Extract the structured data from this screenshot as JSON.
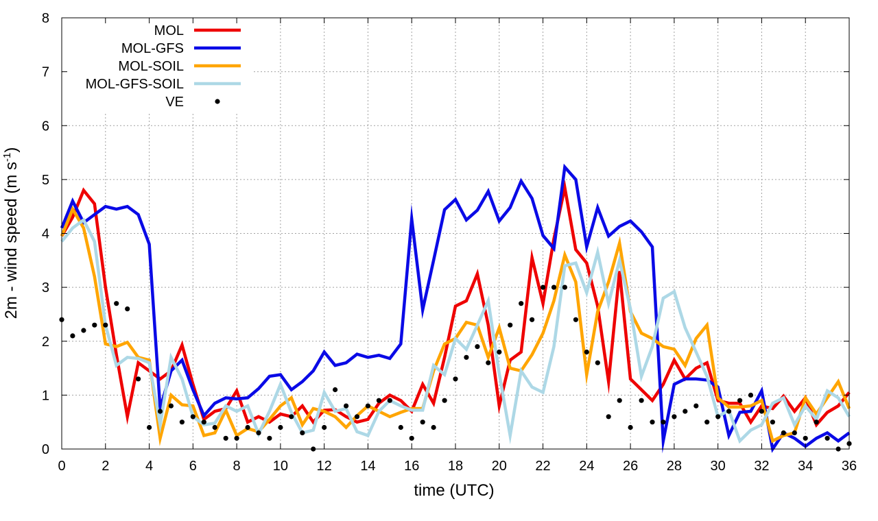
{
  "chart_data": {
    "type": "line",
    "title": "",
    "xlabel": "time (UTC)",
    "ylabel_main": "2m - wind speed  (m s",
    "ylabel_sup": "-1",
    "ylabel_tail": ")",
    "xlim": [
      0,
      36
    ],
    "ylim": [
      0,
      8
    ],
    "xticks": [
      0,
      2,
      4,
      6,
      8,
      10,
      12,
      14,
      16,
      18,
      20,
      22,
      24,
      26,
      28,
      30,
      32,
      34,
      36
    ],
    "yticks": [
      0,
      1,
      2,
      3,
      4,
      5,
      6,
      7,
      8
    ],
    "grid": true,
    "legend_position": "top-left",
    "x": [
      0,
      0.5,
      1,
      1.5,
      2,
      2.5,
      3,
      3.5,
      4,
      4.5,
      5,
      5.5,
      6,
      6.5,
      7,
      7.5,
      8,
      8.5,
      9,
      9.5,
      10,
      10.5,
      11,
      11.5,
      12,
      12.5,
      13,
      13.5,
      14,
      14.5,
      15,
      15.5,
      16,
      16.5,
      17,
      17.5,
      18,
      18.5,
      19,
      19.5,
      20,
      20.5,
      21,
      21.5,
      22,
      22.5,
      23,
      23.5,
      24,
      24.5,
      25,
      25.5,
      26,
      26.5,
      27,
      27.5,
      28,
      28.5,
      29,
      29.5,
      30,
      30.5,
      31,
      31.5,
      32,
      32.5,
      33,
      33.5,
      34,
      34.5,
      35,
      35.5,
      36
    ],
    "series": [
      {
        "name": "MOL",
        "color": "#ee0000",
        "style": "line",
        "values": [
          3.95,
          4.3,
          4.8,
          4.55,
          3.0,
          1.75,
          0.6,
          1.6,
          1.45,
          1.3,
          1.45,
          1.93,
          1.2,
          0.55,
          0.7,
          0.75,
          1.08,
          0.5,
          0.6,
          0.5,
          0.65,
          0.6,
          0.8,
          0.5,
          0.72,
          0.73,
          0.6,
          0.5,
          0.55,
          0.85,
          1.0,
          0.9,
          0.7,
          1.2,
          0.85,
          1.7,
          2.65,
          2.75,
          3.25,
          2.3,
          0.8,
          1.65,
          1.8,
          3.55,
          2.7,
          3.9,
          4.85,
          3.7,
          3.45,
          2.65,
          1.25,
          3.3,
          1.3,
          1.1,
          0.9,
          1.2,
          1.65,
          1.3,
          1.5,
          1.6,
          0.9,
          0.85,
          0.85,
          0.5,
          0.8,
          0.75,
          0.98,
          0.7,
          0.95,
          0.45,
          0.68,
          0.8,
          1.05
        ]
      },
      {
        "name": "MOL-GFS",
        "color": "#0a0ae6",
        "style": "line",
        "values": [
          4.1,
          4.6,
          4.2,
          4.35,
          4.5,
          4.45,
          4.5,
          4.35,
          3.8,
          0.75,
          1.45,
          1.65,
          1.1,
          0.62,
          0.85,
          0.95,
          0.93,
          0.95,
          1.12,
          1.35,
          1.38,
          1.1,
          1.25,
          1.45,
          1.8,
          1.55,
          1.6,
          1.76,
          1.7,
          1.74,
          1.68,
          1.95,
          4.27,
          2.58,
          3.5,
          4.44,
          4.63,
          4.25,
          4.43,
          4.78,
          4.23,
          4.48,
          4.97,
          4.65,
          3.96,
          3.72,
          5.23,
          5.0,
          3.75,
          4.48,
          3.95,
          4.13,
          4.23,
          4.03,
          3.75,
          0.15,
          1.2,
          1.3,
          1.3,
          1.28,
          1.15,
          0.25,
          0.68,
          0.7,
          1.08,
          0.0,
          0.3,
          0.2,
          0.05,
          0.2,
          0.3,
          0.15,
          0.3
        ]
      },
      {
        "name": "MOL-SOIL",
        "color": "#ffa500",
        "style": "line",
        "values": [
          3.95,
          4.45,
          4.1,
          3.2,
          1.95,
          1.9,
          1.98,
          1.7,
          1.65,
          0.2,
          1.0,
          0.82,
          0.8,
          0.25,
          0.3,
          0.72,
          0.25,
          0.38,
          0.32,
          0.55,
          0.8,
          0.95,
          0.45,
          0.75,
          0.7,
          0.6,
          0.4,
          0.62,
          0.8,
          0.7,
          0.6,
          0.68,
          0.75,
          0.75,
          1.45,
          1.95,
          2.05,
          2.35,
          2.3,
          1.7,
          2.25,
          1.5,
          1.45,
          1.75,
          2.15,
          2.75,
          3.6,
          3.1,
          1.38,
          2.55,
          3.1,
          3.82,
          2.55,
          2.15,
          2.05,
          1.9,
          1.85,
          1.55,
          2.05,
          2.3,
          0.95,
          0.78,
          0.78,
          0.8,
          0.9,
          0.15,
          0.25,
          0.3,
          0.95,
          0.65,
          0.95,
          1.25,
          0.75
        ]
      },
      {
        "name": "MOL-GFS-SOIL",
        "color": "#add8e6",
        "style": "line",
        "values": [
          3.85,
          4.1,
          4.25,
          3.85,
          2.3,
          1.55,
          1.7,
          1.68,
          1.6,
          0.45,
          1.7,
          1.3,
          0.6,
          0.45,
          0.48,
          0.8,
          0.7,
          0.8,
          0.28,
          0.7,
          1.2,
          0.68,
          0.3,
          0.35,
          1.05,
          0.7,
          0.75,
          0.32,
          0.25,
          0.7,
          0.9,
          0.8,
          0.72,
          0.72,
          1.55,
          1.38,
          2.05,
          1.85,
          2.3,
          2.75,
          1.4,
          0.25,
          1.45,
          1.15,
          1.05,
          1.9,
          3.4,
          3.45,
          2.9,
          3.65,
          2.7,
          3.5,
          2.6,
          1.35,
          1.9,
          2.8,
          2.92,
          2.25,
          1.8,
          1.35,
          0.6,
          0.72,
          0.15,
          0.35,
          0.45,
          0.85,
          0.95,
          0.45,
          0.8,
          0.55,
          1.08,
          0.95,
          0.6
        ]
      },
      {
        "name": "VE",
        "color": "#000000",
        "style": "points",
        "values": [
          2.4,
          2.1,
          2.2,
          2.3,
          2.3,
          2.7,
          2.6,
          1.3,
          0.4,
          0.7,
          0.8,
          0.5,
          0.6,
          0.5,
          0.4,
          0.2,
          0.2,
          0.4,
          0.3,
          0.2,
          0.4,
          0.6,
          0.3,
          0.0,
          0.4,
          1.1,
          0.8,
          0.6,
          0.8,
          0.9,
          0.9,
          0.4,
          0.2,
          0.5,
          0.4,
          0.9,
          1.3,
          1.7,
          1.9,
          1.6,
          1.8,
          2.3,
          2.7,
          2.4,
          3.0,
          3.0,
          3.0,
          2.4,
          1.8,
          1.6,
          0.6,
          0.9,
          0.4,
          0.9,
          0.5,
          0.5,
          0.6,
          0.7,
          0.8,
          0.5,
          0.6,
          0.7,
          0.9,
          1.0,
          0.7,
          0.5,
          0.3,
          0.3,
          0.2,
          0.5,
          0.2,
          0.0,
          0.1
        ]
      }
    ]
  }
}
